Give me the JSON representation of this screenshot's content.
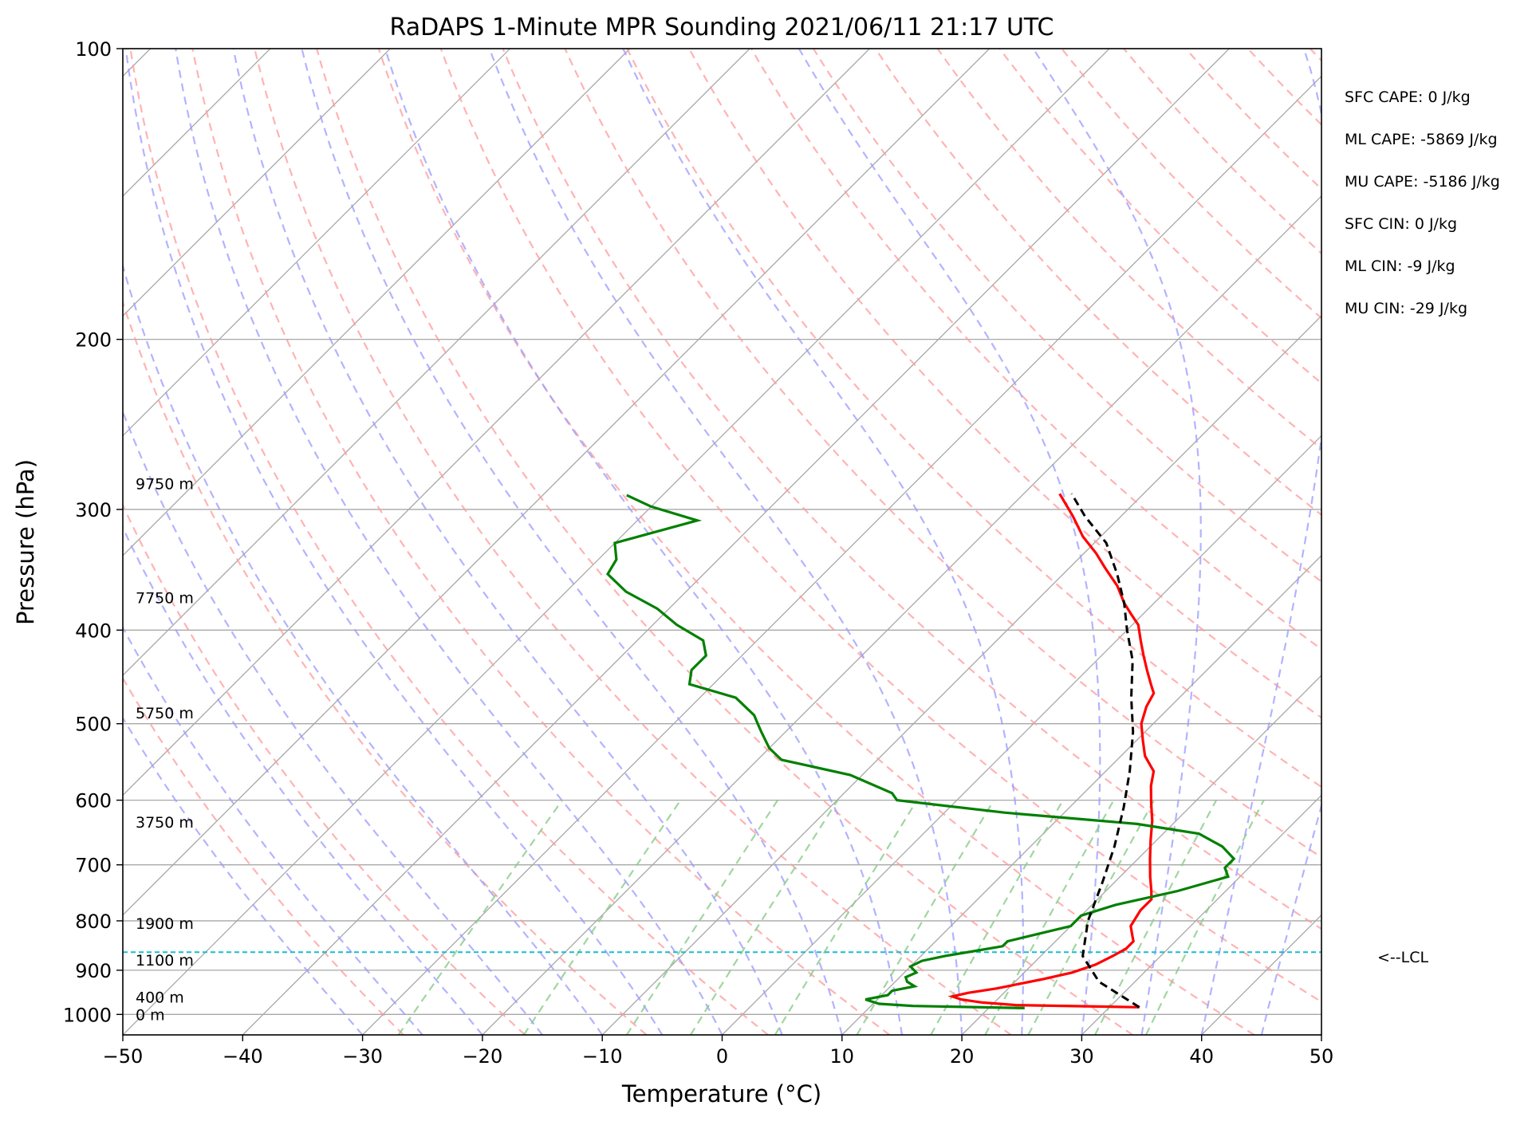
{
  "chart_data": {
    "type": "line",
    "title": "RaDAPS 1-Minute MPR Sounding 2021/06/11 21:17 UTC",
    "xlabel": "Temperature (°C)",
    "ylabel": "Pressure (hPa)",
    "xlim": [
      -50,
      50
    ],
    "ylim": [
      1050,
      100
    ],
    "y_scale": "log",
    "x_ticks": [
      "−50",
      "−40",
      "−30",
      "−20",
      "−10",
      "0",
      "10",
      "20",
      "30",
      "40",
      "50"
    ],
    "x_tick_values": [
      -50,
      -40,
      -30,
      -20,
      -10,
      0,
      10,
      20,
      30,
      40,
      50
    ],
    "y_ticks": [
      "100",
      "200",
      "300",
      "400",
      "500",
      "600",
      "700",
      "800",
      "900",
      "1000"
    ],
    "y_tick_values": [
      100,
      200,
      300,
      400,
      500,
      600,
      700,
      800,
      900,
      1000
    ],
    "grid": true,
    "skew": true,
    "series": [
      {
        "role": "temperature",
        "color": "#ff0000",
        "points": [
          [
            32.5,
            983
          ],
          [
            22,
            978
          ],
          [
            19,
            972
          ],
          [
            17,
            965
          ],
          [
            16,
            958
          ],
          [
            17,
            950
          ],
          [
            19,
            940
          ],
          [
            22,
            920
          ],
          [
            24,
            905
          ],
          [
            25.3,
            888
          ],
          [
            26,
            870
          ],
          [
            26.5,
            855
          ],
          [
            26.5,
            840
          ],
          [
            26,
            830
          ],
          [
            25,
            810
          ],
          [
            24.5,
            780
          ],
          [
            24.5,
            760
          ],
          [
            23.8,
            745
          ],
          [
            22.5,
            720
          ],
          [
            21,
            690
          ],
          [
            19.5,
            660
          ],
          [
            18,
            630
          ],
          [
            16.5,
            605
          ],
          [
            15,
            580
          ],
          [
            14,
            560
          ],
          [
            12,
            540
          ],
          [
            10.5,
            520
          ],
          [
            9,
            500
          ],
          [
            8,
            480
          ],
          [
            7.5,
            465
          ],
          [
            6.5,
            455
          ],
          [
            5,
            440
          ],
          [
            3.5,
            425
          ],
          [
            2,
            410
          ],
          [
            0.5,
            395
          ],
          [
            -1,
            385
          ],
          [
            -2.5,
            375
          ],
          [
            -4.5,
            360
          ],
          [
            -7,
            345
          ],
          [
            -9,
            333
          ],
          [
            -11.5,
            320
          ],
          [
            -14,
            305
          ],
          [
            -17,
            289
          ]
        ]
      },
      {
        "role": "dewpoint",
        "color": "#008000",
        "points": [
          [
            23,
            985
          ],
          [
            13.5,
            980
          ],
          [
            10.5,
            975
          ],
          [
            9,
            965
          ],
          [
            10.5,
            955
          ],
          [
            10.5,
            945
          ],
          [
            12,
            935
          ],
          [
            11,
            925
          ],
          [
            10.5,
            915
          ],
          [
            11,
            905
          ],
          [
            10,
            892
          ],
          [
            10.5,
            880
          ],
          [
            12,
            870
          ],
          [
            14,
            860
          ],
          [
            16,
            850
          ],
          [
            16,
            840
          ],
          [
            18,
            825
          ],
          [
            20,
            810
          ],
          [
            20,
            790
          ],
          [
            22,
            770
          ],
          [
            26,
            745
          ],
          [
            29,
            720
          ],
          [
            28,
            705
          ],
          [
            28,
            690
          ],
          [
            26,
            670
          ],
          [
            23,
            650
          ],
          [
            17,
            635
          ],
          [
            5,
            618
          ],
          [
            -5,
            600
          ],
          [
            -6,
            590
          ],
          [
            -11,
            565
          ],
          [
            -18,
            545
          ],
          [
            -20,
            530
          ],
          [
            -22,
            510
          ],
          [
            -23,
            500
          ],
          [
            -24,
            490
          ],
          [
            -27,
            470
          ],
          [
            -32,
            455
          ],
          [
            -33,
            440
          ],
          [
            -33,
            425
          ],
          [
            -34.5,
            410
          ],
          [
            -38,
            395
          ],
          [
            -41,
            380
          ],
          [
            -45,
            365
          ],
          [
            -48,
            350
          ],
          [
            -48.5,
            338
          ],
          [
            -50,
            325
          ],
          [
            -45,
            308
          ],
          [
            -50,
            298
          ],
          [
            -53,
            290
          ]
        ]
      },
      {
        "role": "parcel",
        "color": "#000000",
        "points": [
          [
            32.5,
            983
          ],
          [
            27,
            925
          ],
          [
            23.5,
            870
          ],
          [
            21,
            800
          ],
          [
            19,
            730
          ],
          [
            17,
            670
          ],
          [
            14.5,
            610
          ],
          [
            12,
            560
          ],
          [
            9,
            510
          ],
          [
            6,
            470
          ],
          [
            3,
            430
          ],
          [
            0,
            400
          ],
          [
            -2.5,
            375
          ],
          [
            -5.5,
            350
          ],
          [
            -9,
            325
          ],
          [
            -13,
            305
          ],
          [
            -16,
            289
          ]
        ]
      }
    ],
    "lcl_hpa": 862,
    "lcl_label": "<--LCL",
    "lcl_color": "#17becf",
    "height_labels": [
      {
        "label": "9750 m",
        "p": 282
      },
      {
        "label": "7750 m",
        "p": 370
      },
      {
        "label": "5750 m",
        "p": 487
      },
      {
        "label": "3750 m",
        "p": 632
      },
      {
        "label": "1900 m",
        "p": 805
      },
      {
        "label": "1100 m",
        "p": 878
      },
      {
        "label": "400 m",
        "p": 959
      },
      {
        "label": "0 m",
        "p": 1000
      }
    ],
    "stats": [
      "SFC CAPE: 0 J/kg",
      "ML CAPE: -5869 J/kg",
      "MU CAPE: -5186 J/kg",
      "SFC CIN: 0 J/kg",
      "ML CIN: -9 J/kg",
      "MU CIN: -29 J/kg"
    ],
    "colors": {
      "isotherm": "#a8a8a8",
      "dry_adiabat": "#ff9999",
      "moist_adiabat": "#9999ff",
      "mixing_ratio": "#88cc88"
    }
  }
}
